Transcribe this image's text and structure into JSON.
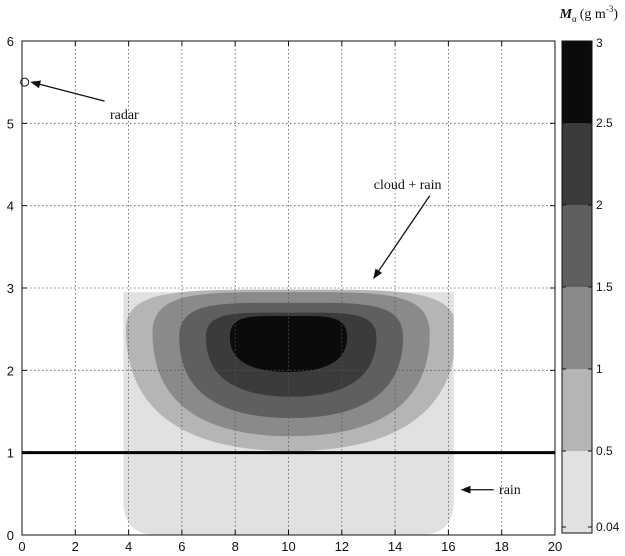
{
  "chart_data": {
    "type": "contour",
    "xlim": [
      0,
      20
    ],
    "ylim": [
      0,
      6
    ],
    "x_ticks": [
      "0",
      "2",
      "4",
      "6",
      "8",
      "10",
      "12",
      "14",
      "16",
      "18",
      "20"
    ],
    "y_ticks": [
      "0",
      "1",
      "2",
      "3",
      "4",
      "5",
      "6"
    ],
    "grid": true,
    "colorbar": {
      "title_main": "M",
      "title_sub": "α",
      "title_units": "(g m",
      "title_exp": "-3",
      "title_close": ")",
      "levels": [
        0.04,
        0.5,
        1,
        1.5,
        2,
        2.5,
        3
      ],
      "level_labels": [
        "0.04",
        "0.5",
        "1",
        "1.5",
        "2",
        "2.5",
        "3"
      ],
      "colors": [
        "#e1e1e1",
        "#b5b5b5",
        "#8a8a8a",
        "#5f5f5f",
        "#3b3b3b",
        "#0b0b0b"
      ]
    },
    "cloud_region": {
      "x": [
        3.8,
        16.2
      ],
      "y": [
        0,
        2.95
      ]
    },
    "contours": [
      {
        "level": 0.5,
        "center": [
          10.1,
          2.5
        ],
        "x_half": 6.2,
        "y_up": 0.48,
        "y_down": 1.48
      },
      {
        "level": 1,
        "center": [
          10.1,
          2.45
        ],
        "x_half": 5.2,
        "y_up": 0.5,
        "y_down": 1.25
      },
      {
        "level": 1.5,
        "center": [
          10.1,
          2.4
        ],
        "x_half": 4.2,
        "y_up": 0.42,
        "y_down": 0.98
      },
      {
        "level": 2,
        "center": [
          10.1,
          2.4
        ],
        "x_half": 3.2,
        "y_up": 0.3,
        "y_down": 0.72
      },
      {
        "level": 2.5,
        "center": [
          10.0,
          2.4
        ],
        "x_half": 2.2,
        "y_up": 0.26,
        "y_down": 0.42
      }
    ],
    "horizontal_line_y": 1,
    "annotations": [
      {
        "label": "radar",
        "marker": [
          0.1,
          5.5
        ],
        "text_pos": [
          3.3,
          5.05
        ],
        "arrow_from": [
          3.1,
          5.27
        ],
        "arrow_to": [
          0.35,
          5.5
        ]
      },
      {
        "label": "cloud + rain",
        "text_pos": [
          13.2,
          4.2
        ],
        "arrow_from": [
          15.3,
          4.12
        ],
        "arrow_to": [
          13.2,
          3.12
        ]
      },
      {
        "label": "rain",
        "text_pos": [
          17.9,
          0.5
        ],
        "arrow_from": [
          17.7,
          0.55
        ],
        "arrow_to": [
          16.5,
          0.55
        ]
      }
    ]
  }
}
